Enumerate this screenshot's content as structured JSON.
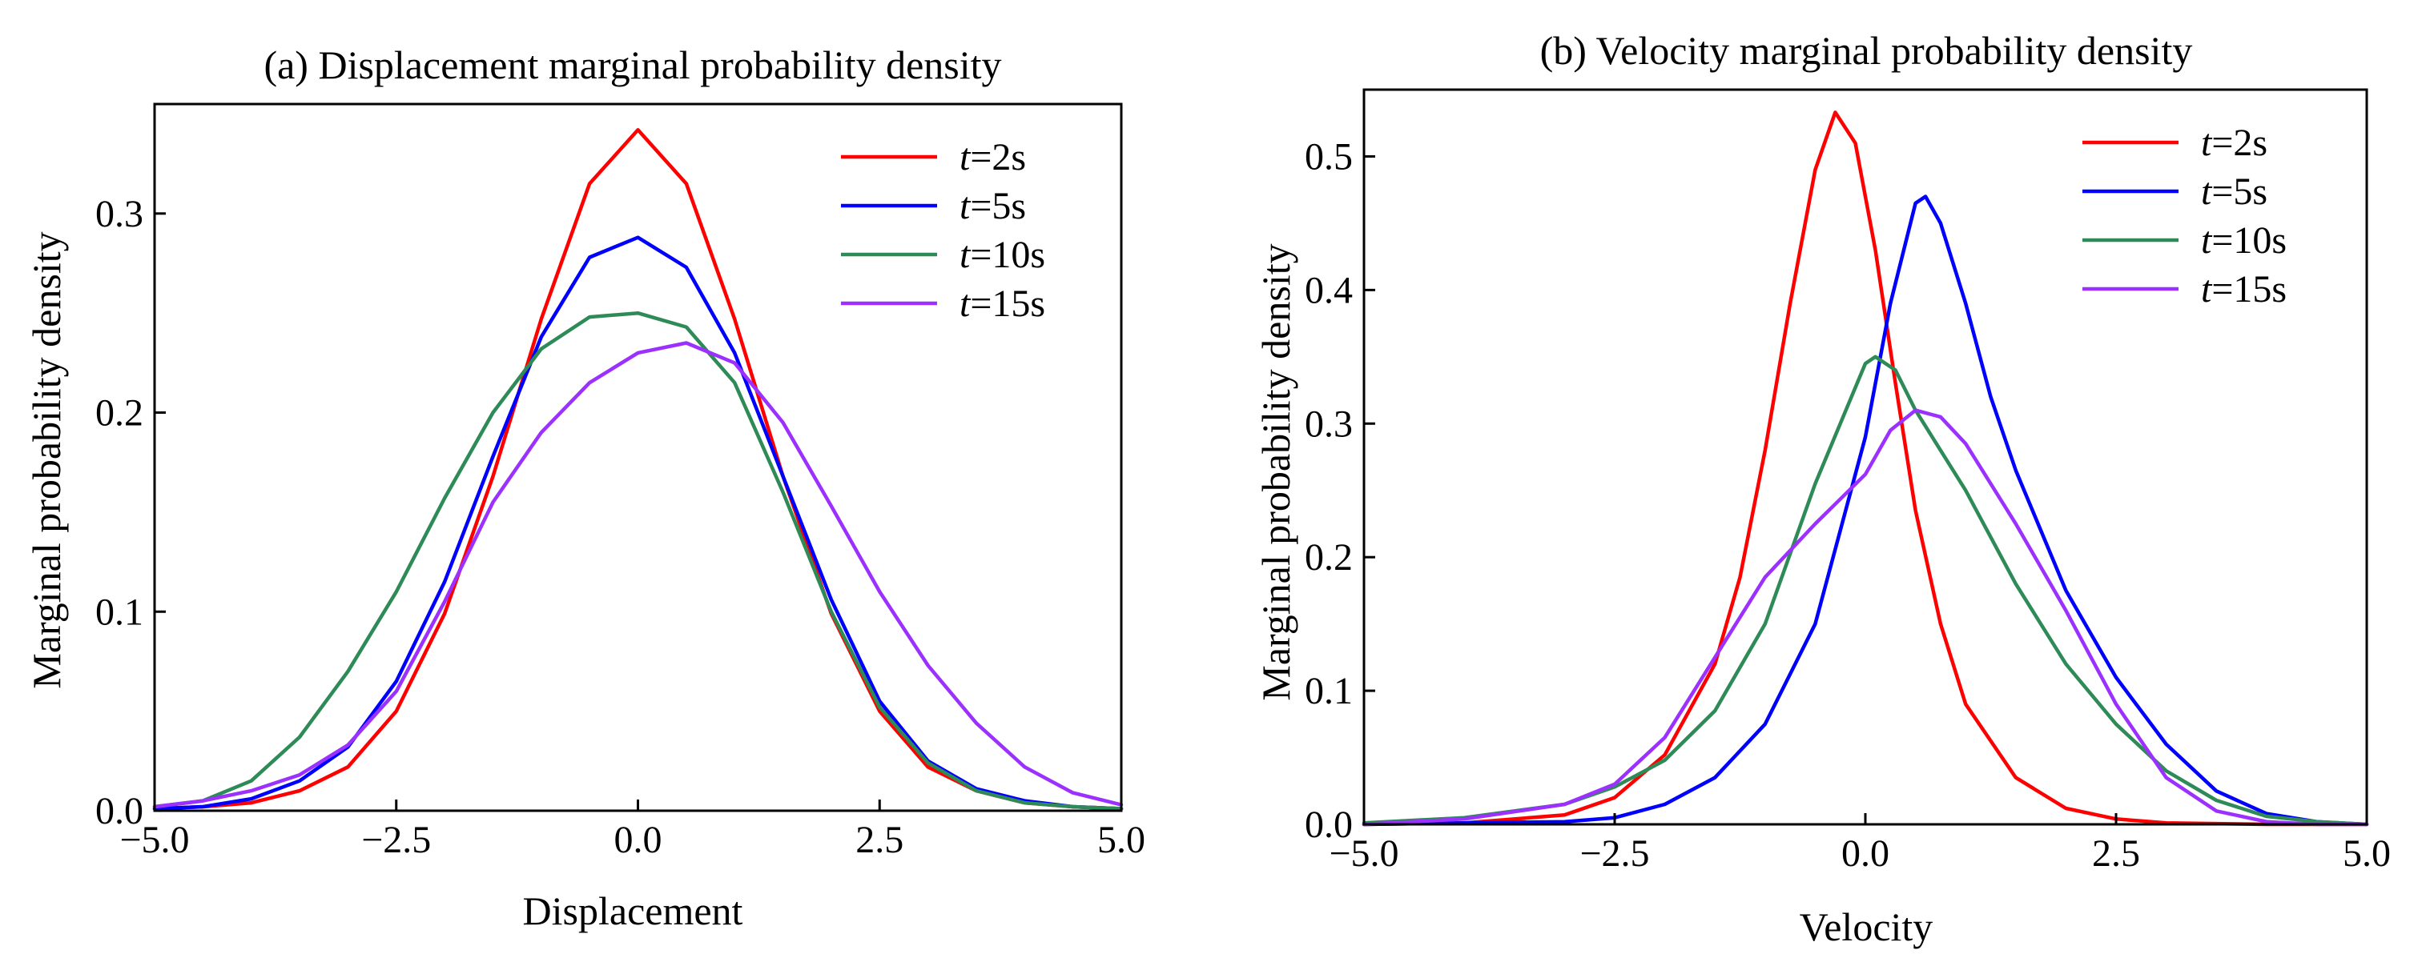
{
  "chart_data": [
    {
      "type": "line",
      "title": "(a) Displacement marginal probability density",
      "xlabel": "Displacement",
      "ylabel": "Marginal probability density",
      "xlim": [
        -5.0,
        5.0
      ],
      "ylim": [
        0.0,
        0.355
      ],
      "xticks": [
        -5.0,
        -2.5,
        0.0,
        2.5,
        5.0
      ],
      "xtick_labels": [
        "−5.0",
        "−2.5",
        "0.0",
        "2.5",
        "5.0"
      ],
      "yticks": [
        0.0,
        0.1,
        0.2,
        0.3
      ],
      "ytick_labels": [
        "0.0",
        "0.1",
        "0.2",
        "0.3"
      ],
      "grid": false,
      "legend_position": "top-right",
      "series": [
        {
          "name": "t=2s",
          "legend_var": "t",
          "legend_rest": "=2s",
          "color": "#ff0000",
          "x": [
            -5,
            -4.5,
            -4,
            -3.5,
            -3,
            -2.5,
            -2,
            -1.5,
            -1,
            -0.5,
            0,
            0.5,
            1,
            1.5,
            2,
            2.5,
            3,
            3.5,
            4,
            4.5,
            5
          ],
          "y": [
            0.001,
            0.002,
            0.004,
            0.01,
            0.022,
            0.05,
            0.099,
            0.168,
            0.247,
            0.315,
            0.342,
            0.315,
            0.247,
            0.168,
            0.099,
            0.05,
            0.022,
            0.01,
            0.004,
            0.002,
            0.001
          ]
        },
        {
          "name": "t=5s",
          "legend_var": "t",
          "legend_rest": "=5s",
          "color": "#0000ff",
          "x": [
            -5,
            -4.5,
            -4,
            -3.5,
            -3,
            -2.5,
            -2,
            -1.5,
            -1,
            -0.5,
            0,
            0.5,
            1,
            1.5,
            2,
            2.5,
            3,
            3.5,
            4,
            4.5,
            5
          ],
          "y": [
            0.001,
            0.002,
            0.006,
            0.015,
            0.032,
            0.065,
            0.115,
            0.178,
            0.238,
            0.278,
            0.288,
            0.273,
            0.23,
            0.168,
            0.106,
            0.055,
            0.025,
            0.011,
            0.005,
            0.002,
            0.001
          ]
        },
        {
          "name": "t=10s",
          "legend_var": "t",
          "legend_rest": "=10s",
          "color": "#2e8b57",
          "x": [
            -5,
            -4.5,
            -4,
            -3.5,
            -3,
            -2.5,
            -2,
            -1.5,
            -1,
            -0.5,
            0,
            0.5,
            1,
            1.5,
            2,
            2.5,
            3,
            3.5,
            4,
            4.5,
            5
          ],
          "y": [
            0.002,
            0.005,
            0.015,
            0.037,
            0.07,
            0.11,
            0.157,
            0.2,
            0.232,
            0.248,
            0.25,
            0.243,
            0.215,
            0.16,
            0.1,
            0.052,
            0.024,
            0.01,
            0.004,
            0.002,
            0.001
          ]
        },
        {
          "name": "t=15s",
          "legend_var": "t",
          "legend_rest": "=15s",
          "color": "#9b30ff",
          "x": [
            -5,
            -4.5,
            -4,
            -3.5,
            -3,
            -2.5,
            -2,
            -1.5,
            -1,
            -0.5,
            0,
            0.5,
            1,
            1.5,
            2,
            2.5,
            3,
            3.5,
            4,
            4.5,
            5
          ],
          "y": [
            0.002,
            0.005,
            0.01,
            0.018,
            0.033,
            0.06,
            0.105,
            0.155,
            0.19,
            0.215,
            0.23,
            0.235,
            0.225,
            0.195,
            0.153,
            0.11,
            0.073,
            0.044,
            0.022,
            0.009,
            0.003
          ]
        }
      ]
    },
    {
      "type": "line",
      "title": "(b) Velocity marginal probability density",
      "xlabel": "Velocity",
      "ylabel": "Marginal probability density",
      "xlim": [
        -5.0,
        5.0
      ],
      "ylim": [
        0.0,
        0.55
      ],
      "xticks": [
        -5.0,
        -2.5,
        0.0,
        2.5,
        5.0
      ],
      "xtick_labels": [
        "−5.0",
        "−2.5",
        "0.0",
        "2.5",
        "5.0"
      ],
      "yticks": [
        0.0,
        0.1,
        0.2,
        0.3,
        0.4,
        0.5
      ],
      "ytick_labels": [
        "0.0",
        "0.1",
        "0.2",
        "0.3",
        "0.4",
        "0.5"
      ],
      "grid": false,
      "legend_position": "top-right",
      "series": [
        {
          "name": "t=2s",
          "legend_var": "t",
          "legend_rest": "=2s",
          "color": "#ff0000",
          "x": [
            -5,
            -4,
            -3,
            -2.5,
            -2,
            -1.5,
            -1.25,
            -1,
            -0.75,
            -0.5,
            -0.3,
            -0.1,
            0.1,
            0.3,
            0.5,
            0.75,
            1,
            1.5,
            2,
            2.5,
            3,
            4,
            5
          ],
          "y": [
            0,
            0.001,
            0.007,
            0.02,
            0.052,
            0.12,
            0.185,
            0.28,
            0.39,
            0.49,
            0.533,
            0.51,
            0.43,
            0.33,
            0.235,
            0.15,
            0.09,
            0.035,
            0.012,
            0.004,
            0.001,
            0,
            0
          ]
        },
        {
          "name": "t=5s",
          "legend_var": "t",
          "legend_rest": "=5s",
          "color": "#0000ff",
          "x": [
            -5,
            -4,
            -3,
            -2.5,
            -2,
            -1.5,
            -1,
            -0.5,
            0,
            0.25,
            0.5,
            0.6,
            0.75,
            1,
            1.25,
            1.5,
            2,
            2.5,
            3,
            3.5,
            4,
            4.5,
            5
          ],
          "y": [
            0,
            0.001,
            0.002,
            0.005,
            0.015,
            0.035,
            0.075,
            0.15,
            0.29,
            0.39,
            0.465,
            0.47,
            0.45,
            0.39,
            0.32,
            0.265,
            0.175,
            0.11,
            0.06,
            0.025,
            0.008,
            0.002,
            0
          ]
        },
        {
          "name": "t=10s",
          "legend_var": "t",
          "legend_rest": "=10s",
          "color": "#2e8b57",
          "x": [
            -5,
            -4,
            -3,
            -2.5,
            -2,
            -1.5,
            -1,
            -0.5,
            0,
            0.1,
            0.3,
            0.5,
            1,
            1.5,
            2,
            2.5,
            3,
            3.5,
            4,
            4.5,
            5
          ],
          "y": [
            0.001,
            0.005,
            0.015,
            0.028,
            0.048,
            0.085,
            0.15,
            0.255,
            0.345,
            0.35,
            0.34,
            0.31,
            0.25,
            0.18,
            0.12,
            0.075,
            0.04,
            0.018,
            0.006,
            0.002,
            0
          ]
        },
        {
          "name": "t=15s",
          "legend_var": "t",
          "legend_rest": "=15s",
          "color": "#9b30ff",
          "x": [
            -5,
            -4,
            -3,
            -2.5,
            -2,
            -1.5,
            -1,
            -0.5,
            0,
            0.25,
            0.5,
            0.75,
            1,
            1.5,
            2,
            2.5,
            3,
            3.5,
            4,
            4.5,
            5
          ],
          "y": [
            0,
            0.004,
            0.015,
            0.03,
            0.065,
            0.125,
            0.185,
            0.225,
            0.262,
            0.295,
            0.31,
            0.305,
            0.285,
            0.225,
            0.16,
            0.09,
            0.035,
            0.01,
            0.002,
            0,
            0
          ]
        }
      ]
    }
  ]
}
